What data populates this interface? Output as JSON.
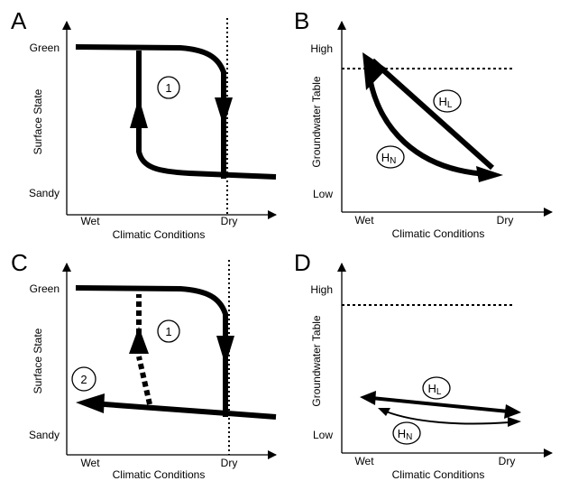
{
  "panels": {
    "A": {
      "letter": "A",
      "ylabel": "Surface State",
      "xlabel": "Climatic Conditions",
      "y_high": "Green",
      "y_low": "Sandy",
      "x_left": "Wet",
      "x_right": "Dry",
      "markers": [
        "1"
      ]
    },
    "B": {
      "letter": "B",
      "ylabel": "Groundwater Table",
      "xlabel": "Climatic Conditions",
      "y_high": "High",
      "y_low": "Low",
      "x_left": "Wet",
      "x_right": "Dry",
      "markers": [
        {
          "main": "H",
          "sub": "L"
        },
        {
          "main": "H",
          "sub": "N"
        }
      ]
    },
    "C": {
      "letter": "C",
      "ylabel": "Surface State",
      "xlabel": "Climatic Conditions",
      "y_high": "Green",
      "y_low": "Sandy",
      "x_left": "Wet",
      "x_right": "Dry",
      "markers": [
        "1",
        "2"
      ]
    },
    "D": {
      "letter": "D",
      "ylabel": "Groundwater Table",
      "xlabel": "Climatic Conditions",
      "y_high": "High",
      "y_low": "Low",
      "x_left": "Wet",
      "x_right": "Dry",
      "markers": [
        {
          "main": "H",
          "sub": "L"
        },
        {
          "main": "H",
          "sub": "N"
        }
      ]
    }
  }
}
